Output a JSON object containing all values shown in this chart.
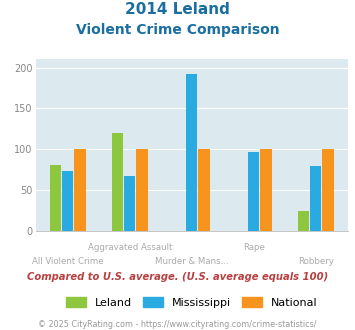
{
  "title_line1": "2014 Leland",
  "title_line2": "Violent Crime Comparison",
  "categories": [
    "All Violent Crime",
    "Aggravated Assault",
    "Murder & Mans...",
    "Rape",
    "Robbery"
  ],
  "series": {
    "Leland": [
      81,
      120,
      0,
      0,
      25
    ],
    "Mississippi": [
      74,
      67,
      192,
      97,
      80
    ],
    "National": [
      100,
      100,
      100,
      100,
      100
    ]
  },
  "colors": {
    "Leland": "#8dc63f",
    "Mississippi": "#29abe2",
    "National": "#f7941d"
  },
  "ylim": [
    0,
    210
  ],
  "yticks": [
    0,
    50,
    100,
    150,
    200
  ],
  "background_color": "#dce9ee",
  "note": "Compared to U.S. average. (U.S. average equals 100)",
  "footer": "© 2025 CityRating.com - https://www.cityrating.com/crime-statistics/",
  "title_color": "#1a6ea0",
  "note_color": "#b94040",
  "footer_color": "#999999",
  "label_color": "#aaaaaa"
}
